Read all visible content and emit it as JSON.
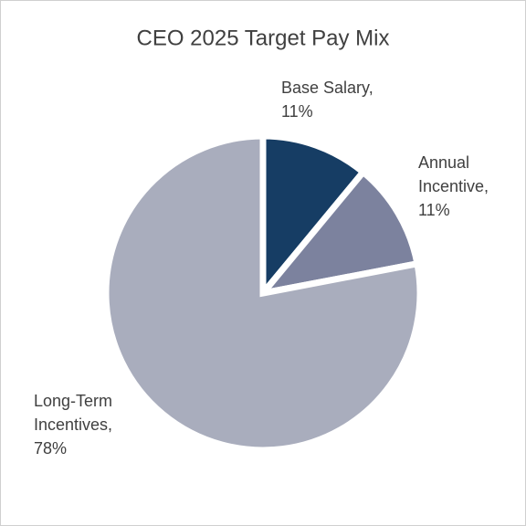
{
  "chart_data": {
    "type": "pie",
    "title": "CEO 2025 Target Pay Mix",
    "categories": [
      "Base Salary,",
      "Annual Incentive,",
      "Long-Term Incentives,"
    ],
    "values": [
      11,
      11,
      78
    ],
    "value_labels": [
      "11%",
      "11%",
      "78%"
    ],
    "colors": [
      "#163d64",
      "#7c829e",
      "#a9adbd"
    ]
  }
}
